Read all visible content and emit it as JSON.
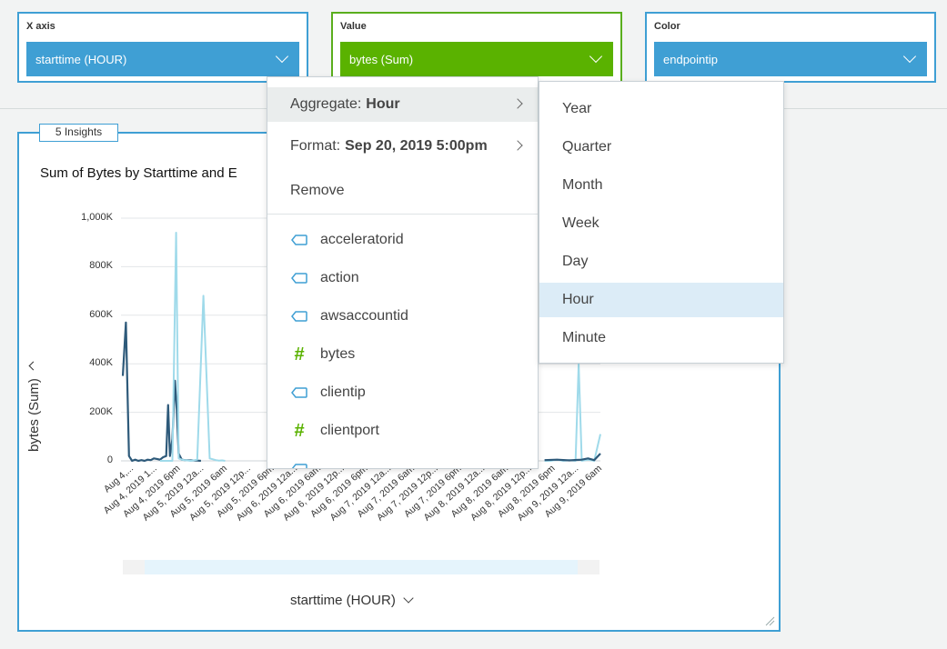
{
  "field_wells": {
    "x_axis": {
      "title": "X axis",
      "value": "starttime (HOUR)"
    },
    "value": {
      "title": "Value",
      "value": "bytes (Sum)"
    },
    "color": {
      "title": "Color",
      "value": "endpointip"
    }
  },
  "visual": {
    "insights_badge": "5 Insights",
    "title": "Sum of Bytes by Starttime and E",
    "resize_icon": "resize-grip-icon"
  },
  "menu": {
    "aggregate": {
      "label": "Aggregate:",
      "value": "Hour"
    },
    "format": {
      "label": "Format:",
      "value": "Sep 20, 2019 5:00pm"
    },
    "remove": "Remove",
    "fields": [
      {
        "name": "acceleratorid",
        "kind": "dimension",
        "icon": "dimension-tag-icon"
      },
      {
        "name": "action",
        "kind": "dimension",
        "icon": "dimension-tag-icon"
      },
      {
        "name": "awsaccountid",
        "kind": "dimension",
        "icon": "dimension-tag-icon"
      },
      {
        "name": "bytes",
        "kind": "measure",
        "icon": "measure-hash-icon"
      },
      {
        "name": "clientip",
        "kind": "dimension",
        "icon": "dimension-tag-icon"
      },
      {
        "name": "clientport",
        "kind": "measure",
        "icon": "measure-hash-icon"
      }
    ]
  },
  "submenu": {
    "options": [
      "Year",
      "Quarter",
      "Month",
      "Week",
      "Day",
      "Hour",
      "Minute"
    ],
    "selected": "Hour"
  },
  "colors": {
    "accent_blue": "#3f9fd4",
    "accent_green": "#5ab200",
    "series_dark": "#2e5a7a",
    "series_light": "#9fdaea"
  },
  "chart_data": {
    "type": "line",
    "title": "Sum of Bytes by Starttime and E",
    "xlabel": "starttime (HOUR)",
    "ylabel": "bytes (Sum)",
    "ylim": [
      0,
      1000000
    ],
    "y_ticks": [
      "1,000K",
      "800K",
      "600K",
      "400K",
      "200K",
      "0"
    ],
    "y_tick_values": [
      1000000,
      800000,
      600000,
      400000,
      200000,
      0
    ],
    "x_ticks": [
      "Aug 4,...",
      "Aug 4, 2019 1...",
      "Aug 4, 2019 6pm",
      "Aug 5, 2019 12a...",
      "Aug 5, 2019 6am",
      "Aug 5, 2019 12p...",
      "Aug 5, 2019 6pm",
      "Aug 6, 2019 12a...",
      "Aug 6, 2019 6am",
      "Aug 6, 2019 12p...",
      "Aug 6, 2019 6pm",
      "Aug 7, 2019 12a...",
      "Aug 7, 2019 6am",
      "Aug 7, 2019 12p...",
      "Aug 7, 2019 6pm",
      "Aug 8, 2019 12a...",
      "Aug 8, 2019 6am",
      "Aug 8, 2019 12p...",
      "Aug 8, 2019 6pm",
      "Aug 9, 2019 12a...",
      "Aug 9, 2019 6am"
    ],
    "series": [
      {
        "color": "#2e5a7a",
        "x": [
          0,
          0.5,
          1,
          1.5,
          2,
          2.5,
          3,
          3.5,
          4,
          4.5,
          5,
          5.5,
          6,
          6.5,
          7,
          7.3,
          7.6,
          8,
          8.4,
          8.7,
          9,
          9.5,
          10,
          11,
          12,
          12.6
        ],
        "values": [
          350000,
          570000,
          20000,
          0,
          5000,
          0,
          3000,
          0,
          5000,
          3000,
          10000,
          8000,
          5000,
          15000,
          20000,
          230000,
          20000,
          90000,
          330000,
          210000,
          30000,
          5000,
          3000,
          2000,
          1000,
          0
        ]
      },
      {
        "color": "#9fdaea",
        "x": [
          6,
          7,
          8,
          8.6,
          9,
          9.5,
          10,
          11,
          12,
          13,
          14,
          15,
          15.5,
          16,
          16.5
        ],
        "values": [
          0,
          0,
          0,
          940000,
          10000,
          5000,
          3000,
          0,
          5000,
          680000,
          10000,
          3000,
          1000,
          2000,
          0
        ]
      },
      {
        "color": "#9fdaea",
        "x": [
          68,
          69,
          70,
          71,
          72,
          73,
          73.5,
          74,
          75,
          76,
          77
        ],
        "values": [
          0,
          0,
          5000,
          0,
          3000,
          0,
          400000,
          0,
          5000,
          0,
          110000
        ]
      },
      {
        "color": "#2e5a7a",
        "x": [
          68,
          70,
          72,
          74,
          75,
          76,
          77
        ],
        "values": [
          3000,
          5000,
          2000,
          5000,
          10000,
          3000,
          30000
        ]
      }
    ]
  }
}
